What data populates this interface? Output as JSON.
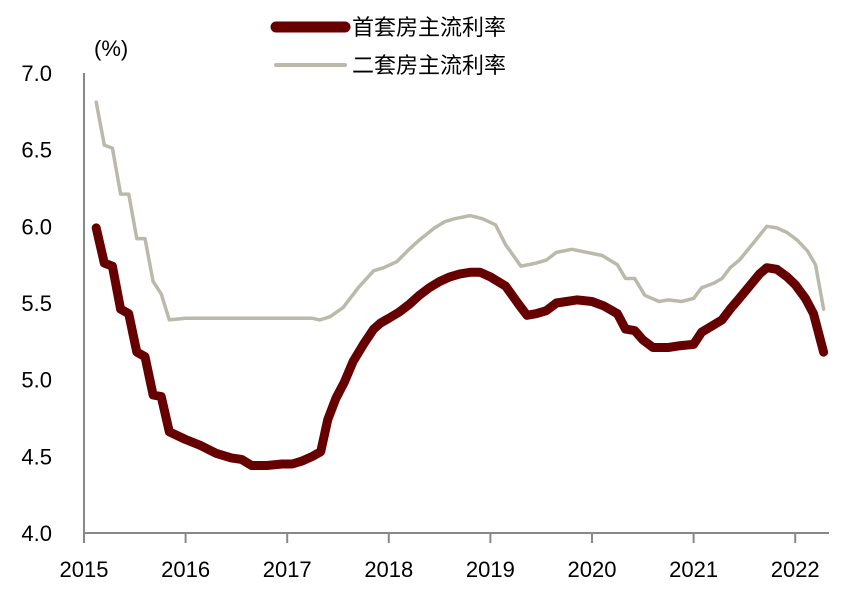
{
  "chart_data": {
    "type": "line",
    "title": "",
    "xlabel": "",
    "ylabel": "(%)",
    "ylim": [
      4.0,
      7.0
    ],
    "xlim": [
      2015,
      2022.3
    ],
    "yticks": [
      "4.0",
      "4.5",
      "5.0",
      "5.5",
      "6.0",
      "6.5",
      "7.0"
    ],
    "xticks": [
      "2015",
      "2016",
      "2017",
      "2018",
      "2019",
      "2020",
      "2021",
      "2022"
    ],
    "grid": false,
    "legend_position": "top-center",
    "series": [
      {
        "name": "首套房主流利率",
        "color": "#660000",
        "line_width": 9,
        "points": [
          [
            2015.12,
            5.99
          ],
          [
            2015.2,
            5.76
          ],
          [
            2015.28,
            5.74
          ],
          [
            2015.36,
            5.46
          ],
          [
            2015.44,
            5.43
          ],
          [
            2015.52,
            5.18
          ],
          [
            2015.6,
            5.15
          ],
          [
            2015.68,
            4.9
          ],
          [
            2015.76,
            4.89
          ],
          [
            2015.84,
            4.66
          ],
          [
            2016.0,
            4.61
          ],
          [
            2016.15,
            4.57
          ],
          [
            2016.3,
            4.52
          ],
          [
            2016.45,
            4.49
          ],
          [
            2016.55,
            4.48
          ],
          [
            2016.65,
            4.44
          ],
          [
            2016.8,
            4.44
          ],
          [
            2016.95,
            4.45
          ],
          [
            2017.05,
            4.45
          ],
          [
            2017.15,
            4.47
          ],
          [
            2017.25,
            4.5
          ],
          [
            2017.33,
            4.53
          ],
          [
            2017.4,
            4.74
          ],
          [
            2017.48,
            4.88
          ],
          [
            2017.56,
            4.98
          ],
          [
            2017.65,
            5.12
          ],
          [
            2017.75,
            5.23
          ],
          [
            2017.85,
            5.33
          ],
          [
            2017.92,
            5.37
          ],
          [
            2018.0,
            5.4
          ],
          [
            2018.1,
            5.44
          ],
          [
            2018.2,
            5.49
          ],
          [
            2018.3,
            5.55
          ],
          [
            2018.4,
            5.6
          ],
          [
            2018.5,
            5.64
          ],
          [
            2018.6,
            5.67
          ],
          [
            2018.7,
            5.69
          ],
          [
            2018.8,
            5.7
          ],
          [
            2018.9,
            5.7
          ],
          [
            2019.0,
            5.67
          ],
          [
            2019.15,
            5.61
          ],
          [
            2019.28,
            5.49
          ],
          [
            2019.36,
            5.42
          ],
          [
            2019.45,
            5.43
          ],
          [
            2019.55,
            5.45
          ],
          [
            2019.65,
            5.5
          ],
          [
            2019.75,
            5.51
          ],
          [
            2019.85,
            5.52
          ],
          [
            2020.0,
            5.51
          ],
          [
            2020.12,
            5.48
          ],
          [
            2020.25,
            5.43
          ],
          [
            2020.33,
            5.33
          ],
          [
            2020.42,
            5.32
          ],
          [
            2020.5,
            5.26
          ],
          [
            2020.6,
            5.21
          ],
          [
            2020.75,
            5.21
          ],
          [
            2020.85,
            5.22
          ],
          [
            2021.0,
            5.23
          ],
          [
            2021.08,
            5.31
          ],
          [
            2021.18,
            5.35
          ],
          [
            2021.28,
            5.39
          ],
          [
            2021.36,
            5.46
          ],
          [
            2021.45,
            5.53
          ],
          [
            2021.55,
            5.61
          ],
          [
            2021.65,
            5.69
          ],
          [
            2021.72,
            5.73
          ],
          [
            2021.82,
            5.72
          ],
          [
            2021.92,
            5.67
          ],
          [
            2022.0,
            5.62
          ],
          [
            2022.1,
            5.53
          ],
          [
            2022.18,
            5.43
          ],
          [
            2022.28,
            5.18
          ]
        ]
      },
      {
        "name": "二套房主流利率",
        "color": "#bbbaaa",
        "line_width": 3.5,
        "points": [
          [
            2015.12,
            6.81
          ],
          [
            2015.2,
            6.53
          ],
          [
            2015.28,
            6.51
          ],
          [
            2015.36,
            6.21
          ],
          [
            2015.44,
            6.21
          ],
          [
            2015.52,
            5.92
          ],
          [
            2015.6,
            5.92
          ],
          [
            2015.68,
            5.64
          ],
          [
            2015.76,
            5.56
          ],
          [
            2015.84,
            5.39
          ],
          [
            2016.0,
            5.4
          ],
          [
            2016.5,
            5.4
          ],
          [
            2016.8,
            5.4
          ],
          [
            2017.0,
            5.4
          ],
          [
            2017.15,
            5.4
          ],
          [
            2017.25,
            5.4
          ],
          [
            2017.32,
            5.39
          ],
          [
            2017.42,
            5.41
          ],
          [
            2017.55,
            5.47
          ],
          [
            2017.7,
            5.6
          ],
          [
            2017.85,
            5.71
          ],
          [
            2017.95,
            5.73
          ],
          [
            2018.08,
            5.77
          ],
          [
            2018.2,
            5.85
          ],
          [
            2018.3,
            5.91
          ],
          [
            2018.45,
            5.99
          ],
          [
            2018.55,
            6.03
          ],
          [
            2018.65,
            6.05
          ],
          [
            2018.8,
            6.07
          ],
          [
            2018.92,
            6.05
          ],
          [
            2019.05,
            6.01
          ],
          [
            2019.15,
            5.88
          ],
          [
            2019.3,
            5.74
          ],
          [
            2019.45,
            5.76
          ],
          [
            2019.55,
            5.78
          ],
          [
            2019.65,
            5.83
          ],
          [
            2019.8,
            5.85
          ],
          [
            2019.95,
            5.83
          ],
          [
            2020.1,
            5.81
          ],
          [
            2020.25,
            5.75
          ],
          [
            2020.33,
            5.66
          ],
          [
            2020.42,
            5.66
          ],
          [
            2020.52,
            5.55
          ],
          [
            2020.66,
            5.51
          ],
          [
            2020.75,
            5.52
          ],
          [
            2020.88,
            5.51
          ],
          [
            2021.0,
            5.53
          ],
          [
            2021.08,
            5.6
          ],
          [
            2021.2,
            5.63
          ],
          [
            2021.28,
            5.66
          ],
          [
            2021.36,
            5.73
          ],
          [
            2021.45,
            5.78
          ],
          [
            2021.55,
            5.86
          ],
          [
            2021.72,
            6.0
          ],
          [
            2021.82,
            5.99
          ],
          [
            2021.92,
            5.96
          ],
          [
            2022.02,
            5.91
          ],
          [
            2022.12,
            5.84
          ],
          [
            2022.2,
            5.75
          ],
          [
            2022.28,
            5.46
          ]
        ]
      }
    ]
  },
  "legend": {
    "items": [
      {
        "label": "首套房主流利率",
        "color": "#660000"
      },
      {
        "label": "二套房主流利率",
        "color": "#bbbaaa"
      }
    ]
  },
  "axis": {
    "y_unit": "(%)",
    "axis_color": "#888888"
  }
}
